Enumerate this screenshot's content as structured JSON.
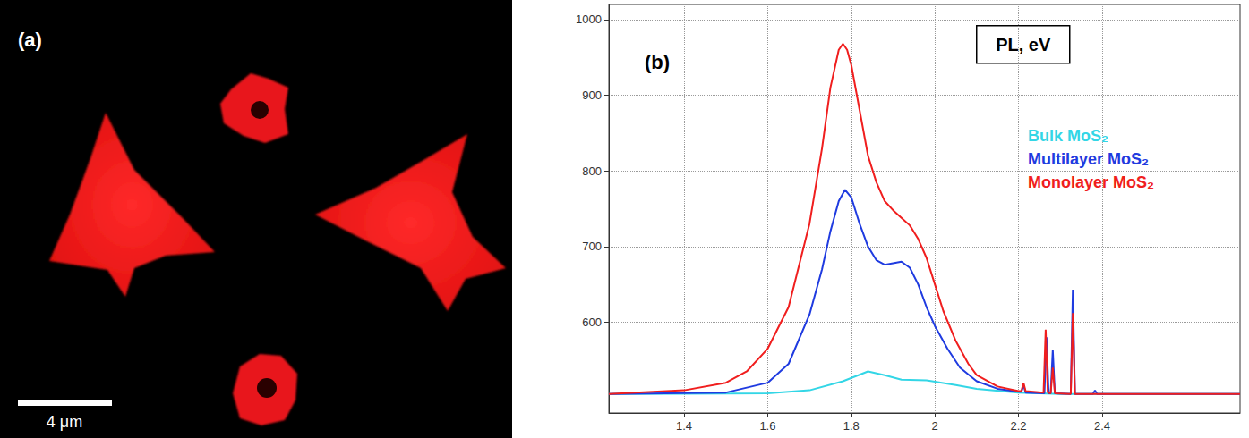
{
  "image_panel": {
    "label": "(a)",
    "scale_bar_label": "4 μm"
  },
  "chart_data": {
    "type": "line",
    "panel_label": "(b)",
    "annotation": "PL, eV",
    "xlim": [
      1.22,
      2.73
    ],
    "xticks": [
      1.4,
      1.6,
      1.8,
      2,
      2.2,
      2.4
    ],
    "ylim": [
      480,
      1020
    ],
    "yticks": [
      600,
      700,
      800,
      900,
      1000
    ],
    "grid": true,
    "legend": "upper right",
    "series": [
      {
        "name": "Bulk MoS₂",
        "color": "#33d6e6",
        "x": [
          1.22,
          1.6,
          1.7,
          1.78,
          1.84,
          1.88,
          1.92,
          1.98,
          2.05,
          2.1,
          2.2,
          2.3,
          2.73
        ],
        "values": [
          505,
          506,
          510,
          522,
          535,
          530,
          524,
          523,
          517,
          512,
          507,
          505,
          505
        ]
      },
      {
        "name": "Multilayer MoS₂",
        "color": "#1f3be0",
        "x": [
          1.22,
          1.5,
          1.6,
          1.65,
          1.7,
          1.73,
          1.75,
          1.77,
          1.785,
          1.8,
          1.82,
          1.84,
          1.86,
          1.88,
          1.9,
          1.92,
          1.94,
          1.96,
          1.98,
          2.0,
          2.03,
          2.06,
          2.1,
          2.15,
          2.2,
          2.207,
          2.212,
          2.217,
          2.262,
          2.267,
          2.272,
          2.277,
          2.282,
          2.287,
          2.325,
          2.33,
          2.335,
          2.378,
          2.383,
          2.388,
          2.5,
          2.73
        ],
        "values": [
          505,
          507,
          520,
          545,
          610,
          670,
          720,
          760,
          775,
          765,
          730,
          700,
          682,
          676,
          678,
          680,
          672,
          650,
          620,
          595,
          565,
          540,
          522,
          512,
          508,
          508,
          517,
          507,
          506,
          580,
          506,
          506,
          563,
          506,
          505,
          643,
          505,
          505,
          510,
          505,
          505,
          505
        ]
      },
      {
        "name": "Monolayer MoS₂",
        "color": "#f01e1e",
        "x": [
          1.22,
          1.4,
          1.5,
          1.55,
          1.6,
          1.65,
          1.7,
          1.73,
          1.75,
          1.77,
          1.78,
          1.79,
          1.8,
          1.82,
          1.84,
          1.86,
          1.88,
          1.9,
          1.92,
          1.94,
          1.96,
          1.98,
          2.0,
          2.02,
          2.05,
          2.08,
          2.1,
          2.15,
          2.2,
          2.207,
          2.212,
          2.217,
          2.26,
          2.265,
          2.27,
          2.277,
          2.282,
          2.287,
          2.325,
          2.33,
          2.335,
          2.4,
          2.5,
          2.73
        ],
        "values": [
          505,
          510,
          520,
          535,
          565,
          620,
          730,
          830,
          910,
          960,
          968,
          960,
          940,
          880,
          820,
          785,
          760,
          748,
          738,
          728,
          710,
          685,
          650,
          615,
          575,
          545,
          530,
          515,
          509,
          509,
          520,
          509,
          507,
          590,
          507,
          506,
          540,
          506,
          505,
          612,
          505,
          505,
          505,
          505
        ]
      }
    ]
  }
}
